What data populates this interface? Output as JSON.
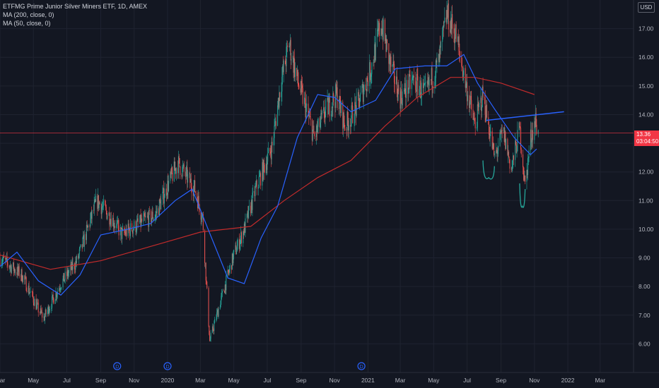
{
  "legend": {
    "title": "ETFMG Prime Junior Silver Miners ETF, 1D, AMEX",
    "ma200": "MA (200, close, 0)",
    "ma50": "MA (50, close, 0)"
  },
  "currency": "USD",
  "price_badge": {
    "price": "13.36",
    "countdown": "03:04:50"
  },
  "colors": {
    "background": "#131722",
    "grid": "#1f2330",
    "up": "#26a69a",
    "down": "#ef5350",
    "ma200": "#c22b2b",
    "ma50": "#2962ff",
    "trendline": "#2962ff",
    "pattern": "#26a69a",
    "priceline": "#f23645"
  },
  "chart_data": {
    "type": "candlestick",
    "y_axis_ticks": [
      6.0,
      7.0,
      8.0,
      9.0,
      10.0,
      11.0,
      12.0,
      13.0,
      14.0,
      15.0,
      16.0,
      17.0
    ],
    "ylim": [
      5.0,
      18.0
    ],
    "x_axis_ticks": [
      "Mar",
      "May",
      "Jul",
      "Sep",
      "Nov",
      "2020",
      "Mar",
      "May",
      "Jul",
      "Sep",
      "Nov",
      "2021",
      "Mar",
      "May",
      "Jul",
      "Sep",
      "Nov",
      "2022",
      "Mar"
    ],
    "x_axis_dates": [
      "2019-03-01",
      "2019-05-01",
      "2019-07-01",
      "2019-09-01",
      "2019-11-01",
      "2020-01-01",
      "2020-03-01",
      "2020-05-01",
      "2020-07-01",
      "2020-09-01",
      "2020-11-01",
      "2021-01-01",
      "2021-03-01",
      "2021-05-01",
      "2021-07-01",
      "2021-09-01",
      "2021-11-01",
      "2022-01-01",
      "2022-03-01"
    ],
    "xlim": [
      "2019-03-01",
      "2022-05-01"
    ],
    "price_series": {
      "name": "",
      "dates": [
        "2019-03-01",
        "2019-04-10",
        "2019-05-10",
        "2019-05-20",
        "2019-06-20",
        "2019-07-20",
        "2019-08-25",
        "2019-09-20",
        "2019-10-10",
        "2019-11-10",
        "2019-12-10",
        "2020-01-05",
        "2020-01-20",
        "2020-02-20",
        "2020-03-05",
        "2020-03-18",
        "2020-04-10",
        "2020-05-01",
        "2020-05-20",
        "2020-06-10",
        "2020-07-10",
        "2020-07-25",
        "2020-08-10",
        "2020-08-25",
        "2020-09-10",
        "2020-09-25",
        "2020-10-15",
        "2020-11-05",
        "2020-11-20",
        "2020-12-10",
        "2021-01-05",
        "2021-01-25",
        "2021-02-10",
        "2021-03-01",
        "2021-03-25",
        "2021-04-15",
        "2021-05-10",
        "2021-05-25",
        "2021-06-10",
        "2021-06-25",
        "2021-07-15",
        "2021-07-30",
        "2021-08-20",
        "2021-09-05",
        "2021-09-20",
        "2021-10-05",
        "2021-10-15",
        "2021-10-25",
        "2021-11-03",
        "2021-11-08"
      ],
      "close": [
        9.0,
        8.4,
        7.2,
        6.9,
        8.1,
        8.9,
        11.0,
        10.4,
        9.8,
        10.2,
        10.5,
        11.7,
        12.3,
        11.4,
        10.4,
        6.1,
        7.7,
        9.1,
        10.0,
        11.4,
        12.9,
        15.0,
        16.5,
        15.2,
        14.2,
        13.2,
        14.1,
        14.7,
        13.6,
        14.2,
        15.5,
        17.2,
        15.8,
        14.6,
        15.2,
        14.7,
        15.8,
        17.5,
        16.8,
        15.4,
        13.6,
        14.7,
        12.5,
        13.4,
        12.1,
        13.5,
        11.5,
        13.2,
        13.8,
        13.3
      ]
    },
    "indicators": [
      {
        "name": "MA (200, close, 0)",
        "points": [
          [
            "2019-03-01",
            9.1
          ],
          [
            "2019-06-01",
            8.6
          ],
          [
            "2019-09-01",
            8.9
          ],
          [
            "2019-12-01",
            9.4
          ],
          [
            "2020-03-01",
            9.9
          ],
          [
            "2020-06-01",
            10.1
          ],
          [
            "2020-08-01",
            11.0
          ],
          [
            "2020-10-01",
            11.8
          ],
          [
            "2020-12-01",
            12.4
          ],
          [
            "2021-02-01",
            13.6
          ],
          [
            "2021-04-01",
            14.6
          ],
          [
            "2021-06-01",
            15.3
          ],
          [
            "2021-07-15",
            15.3
          ],
          [
            "2021-09-01",
            15.1
          ],
          [
            "2021-11-01",
            14.7
          ]
        ]
      },
      {
        "name": "MA (50, close, 0)",
        "points": [
          [
            "2019-03-01",
            8.7
          ],
          [
            "2019-04-01",
            9.2
          ],
          [
            "2019-05-10",
            8.2
          ],
          [
            "2019-06-20",
            7.7
          ],
          [
            "2019-07-25",
            8.4
          ],
          [
            "2019-09-01",
            9.8
          ],
          [
            "2019-10-20",
            10.0
          ],
          [
            "2019-12-01",
            10.2
          ],
          [
            "2020-01-15",
            11.0
          ],
          [
            "2020-02-15",
            11.4
          ],
          [
            "2020-03-15",
            10.0
          ],
          [
            "2020-04-20",
            8.3
          ],
          [
            "2020-05-20",
            8.1
          ],
          [
            "2020-06-20",
            9.7
          ],
          [
            "2020-07-20",
            10.8
          ],
          [
            "2020-08-25",
            13.2
          ],
          [
            "2020-10-01",
            14.7
          ],
          [
            "2020-11-01",
            14.6
          ],
          [
            "2020-12-01",
            14.1
          ],
          [
            "2021-01-15",
            14.5
          ],
          [
            "2021-02-20",
            15.6
          ],
          [
            "2021-04-15",
            15.7
          ],
          [
            "2021-05-25",
            15.7
          ],
          [
            "2021-06-25",
            16.1
          ],
          [
            "2021-07-20",
            15.1
          ],
          [
            "2021-08-20",
            14.2
          ],
          [
            "2021-09-25",
            13.2
          ],
          [
            "2021-10-25",
            12.6
          ],
          [
            "2021-11-05",
            12.8
          ]
        ]
      }
    ],
    "drawings": [
      {
        "type": "trendline",
        "from": [
          "2021-08-05",
          13.8
        ],
        "to": [
          "2021-12-25",
          14.1
        ]
      },
      {
        "type": "arc",
        "from": [
          "2021-07-30",
          12.4
        ],
        "to": [
          "2021-08-20",
          12.2
        ],
        "bottom": 11.8
      },
      {
        "type": "arc",
        "from": [
          "2021-10-05",
          11.6
        ],
        "to": [
          "2021-10-15",
          11.4
        ],
        "bottom": 10.8
      }
    ],
    "dividend_markers": [
      "2019-10-01",
      "2020-01-01",
      "2020-12-20"
    ],
    "last_price": 13.36,
    "grid": true
  }
}
